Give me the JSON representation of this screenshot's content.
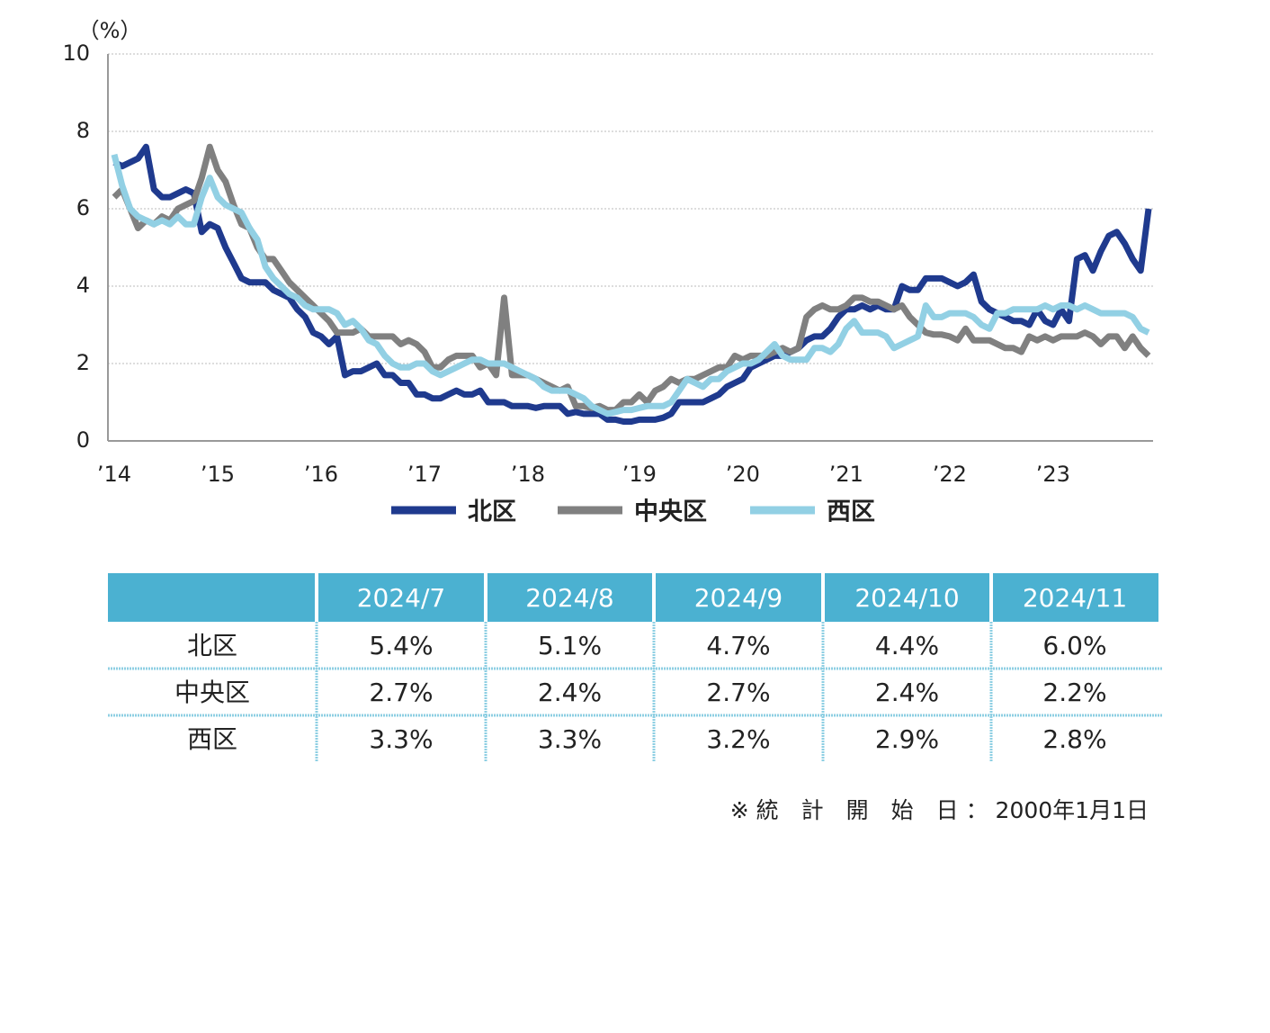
{
  "chart_data": {
    "type": "line",
    "y_label": "（%）",
    "categories": [
      "’14",
      null,
      null,
      null,
      null,
      null,
      null,
      null,
      null,
      null,
      null,
      null,
      null,
      "’15",
      null,
      null,
      null,
      null,
      null,
      null,
      null,
      null,
      null,
      null,
      null,
      null,
      "’16",
      null,
      null,
      null,
      null,
      null,
      null,
      null,
      null,
      null,
      null,
      null,
      null,
      "’17",
      null,
      null,
      null,
      null,
      null,
      null,
      null,
      null,
      null,
      null,
      null,
      null,
      "’18",
      null,
      null,
      null,
      null,
      null,
      null,
      null,
      null,
      null,
      null,
      null,
      null,
      null,
      "’19",
      null,
      null,
      null,
      null,
      null,
      null,
      null,
      null,
      null,
      null,
      null,
      null,
      "’20",
      null,
      null,
      null,
      null,
      null,
      null,
      null,
      null,
      null,
      null,
      null,
      null,
      "’21",
      null,
      null,
      null,
      null,
      null,
      null,
      null,
      null,
      null,
      null,
      null,
      null,
      "’22",
      null,
      null,
      null,
      null,
      null,
      null,
      null,
      null,
      null,
      null,
      null,
      null,
      "’23",
      null,
      null,
      null,
      null,
      null,
      null,
      null,
      null,
      null,
      null,
      null,
      null
    ],
    "series": [
      {
        "name": "北区",
        "color": "#1f3a8e",
        "values": [
          7.2,
          7.1,
          7.2,
          7.3,
          7.6,
          6.5,
          6.3,
          6.3,
          6.4,
          6.5,
          6.4,
          5.4,
          5.6,
          5.5,
          5.0,
          4.6,
          4.2,
          4.1,
          4.1,
          4.1,
          3.9,
          3.8,
          3.7,
          3.4,
          3.2,
          2.8,
          2.7,
          2.5,
          2.7,
          1.7,
          1.8,
          1.8,
          1.9,
          2.0,
          1.7,
          1.7,
          1.5,
          1.5,
          1.2,
          1.2,
          1.1,
          1.1,
          1.2,
          1.3,
          1.2,
          1.2,
          1.3,
          1.0,
          1.0,
          1.0,
          0.9,
          0.9,
          0.9,
          0.85,
          0.9,
          0.9,
          0.9,
          0.7,
          0.75,
          0.7,
          0.7,
          0.7,
          0.55,
          0.55,
          0.5,
          0.5,
          0.55,
          0.55,
          0.55,
          0.6,
          0.7,
          1.0,
          1.0,
          1.0,
          1.0,
          1.1,
          1.2,
          1.4,
          1.5,
          1.6,
          1.9,
          2.0,
          2.1,
          2.2,
          2.2,
          2.3,
          2.4,
          2.6,
          2.7,
          2.7,
          2.9,
          3.2,
          3.4,
          3.4,
          3.5,
          3.4,
          3.5,
          3.4,
          3.4,
          4.0,
          3.9,
          3.9,
          4.2,
          4.2,
          4.2,
          4.1,
          4.0,
          4.1,
          4.3,
          3.6,
          3.4,
          3.3,
          3.2,
          3.1,
          3.1,
          3.0,
          3.4,
          3.1,
          3.0,
          3.4,
          3.1,
          4.7,
          4.8,
          4.4,
          4.9,
          5.3,
          5.4,
          5.1,
          4.7,
          4.4,
          6.0
        ]
      },
      {
        "name": "中央区",
        "color": "#808080",
        "values": [
          6.3,
          6.5,
          6.0,
          5.5,
          5.7,
          5.6,
          5.8,
          5.7,
          6.0,
          6.1,
          6.2,
          6.8,
          7.6,
          7.0,
          6.7,
          6.1,
          5.6,
          5.5,
          5.0,
          4.7,
          4.7,
          4.4,
          4.1,
          3.9,
          3.7,
          3.5,
          3.3,
          3.1,
          2.8,
          2.8,
          2.8,
          2.9,
          2.7,
          2.7,
          2.7,
          2.7,
          2.5,
          2.6,
          2.5,
          2.3,
          1.9,
          1.9,
          2.1,
          2.2,
          2.2,
          2.2,
          1.9,
          2.0,
          1.7,
          3.7,
          1.7,
          1.7,
          1.7,
          1.6,
          1.5,
          1.4,
          1.3,
          1.4,
          0.9,
          0.9,
          0.85,
          0.9,
          0.8,
          0.8,
          1.0,
          1.0,
          1.2,
          1.0,
          1.3,
          1.4,
          1.6,
          1.5,
          1.6,
          1.6,
          1.7,
          1.8,
          1.9,
          1.9,
          2.2,
          2.1,
          2.2,
          2.2,
          2.2,
          2.3,
          2.4,
          2.3,
          2.4,
          3.2,
          3.4,
          3.5,
          3.4,
          3.4,
          3.5,
          3.7,
          3.7,
          3.6,
          3.6,
          3.5,
          3.4,
          3.5,
          3.2,
          3.0,
          2.8,
          2.75,
          2.75,
          2.7,
          2.6,
          2.9,
          2.6,
          2.6,
          2.6,
          2.5,
          2.4,
          2.4,
          2.3,
          2.7,
          2.6,
          2.7,
          2.6,
          2.7,
          2.7,
          2.7,
          2.8,
          2.7,
          2.5,
          2.7,
          2.7,
          2.4,
          2.7,
          2.4,
          2.2
        ]
      },
      {
        "name": "西区",
        "color": "#92d0e4",
        "values": [
          7.4,
          6.6,
          6.0,
          5.8,
          5.7,
          5.6,
          5.7,
          5.6,
          5.8,
          5.6,
          5.6,
          6.3,
          6.8,
          6.3,
          6.1,
          6.0,
          5.9,
          5.5,
          5.2,
          4.5,
          4.2,
          4.0,
          3.8,
          3.7,
          3.5,
          3.4,
          3.4,
          3.4,
          3.3,
          3.0,
          3.1,
          2.9,
          2.6,
          2.5,
          2.2,
          2.0,
          1.9,
          1.9,
          2.0,
          2.0,
          1.8,
          1.7,
          1.8,
          1.9,
          2.0,
          2.1,
          2.1,
          2.0,
          2.0,
          2.0,
          1.9,
          1.8,
          1.7,
          1.6,
          1.4,
          1.3,
          1.3,
          1.3,
          1.2,
          1.1,
          0.9,
          0.8,
          0.7,
          0.75,
          0.8,
          0.8,
          0.85,
          0.9,
          0.9,
          0.9,
          1.0,
          1.3,
          1.6,
          1.5,
          1.4,
          1.6,
          1.6,
          1.8,
          1.9,
          2.0,
          2.0,
          2.1,
          2.3,
          2.5,
          2.2,
          2.1,
          2.1,
          2.1,
          2.4,
          2.4,
          2.3,
          2.5,
          2.9,
          3.1,
          2.8,
          2.8,
          2.8,
          2.7,
          2.4,
          2.5,
          2.6,
          2.7,
          3.5,
          3.2,
          3.2,
          3.3,
          3.3,
          3.3,
          3.2,
          3.0,
          2.9,
          3.3,
          3.3,
          3.4,
          3.4,
          3.4,
          3.4,
          3.5,
          3.4,
          3.5,
          3.5,
          3.4,
          3.5,
          3.4,
          3.3,
          3.3,
          3.3,
          3.3,
          3.2,
          2.9,
          2.8
        ]
      }
    ],
    "ylim": [
      0,
      10
    ],
    "yticks": [
      0,
      2,
      4,
      6,
      8,
      10
    ],
    "grid": true,
    "legend": "bottom"
  },
  "table": {
    "header": [
      "2024/7",
      "2024/8",
      "2024/9",
      "2024/10",
      "2024/11"
    ],
    "rows": [
      [
        "北区",
        "5.4%",
        "5.1%",
        "4.7%",
        "4.4%",
        "6.0%"
      ],
      [
        "中央区",
        "2.7%",
        "2.4%",
        "2.7%",
        "2.4%",
        "2.2%"
      ],
      [
        "西区",
        "3.3%",
        "3.3%",
        "3.2%",
        "2.9%",
        "2.8%"
      ]
    ]
  },
  "note": "※ 統　計　開　始　日 ： 2000年1月1日"
}
